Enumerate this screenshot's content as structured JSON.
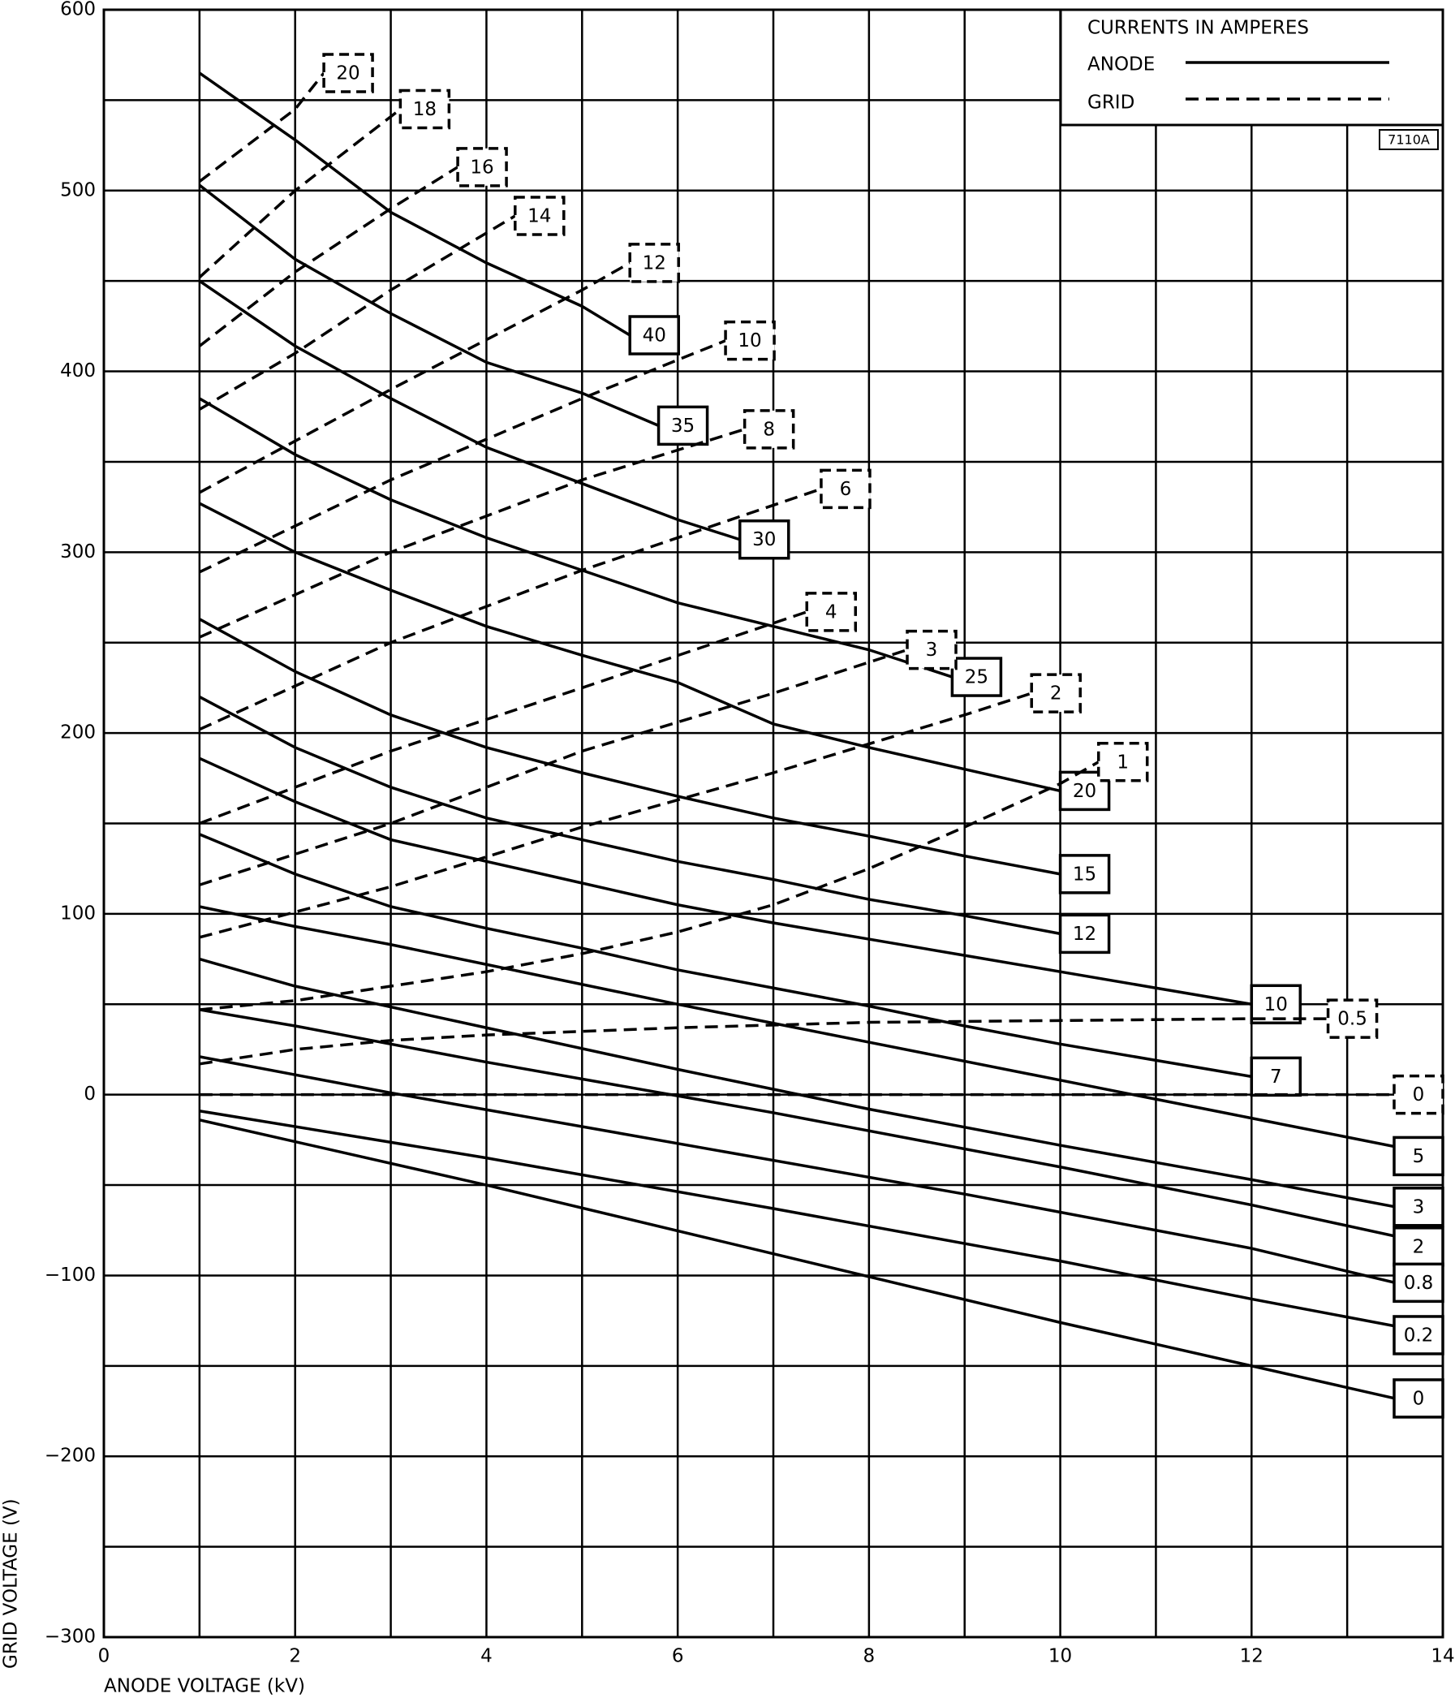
{
  "chart_data": {
    "type": "line",
    "x_label": "ANODE VOLTAGE (kV)",
    "y_label": "GRID VOLTAGE (V)",
    "xlim": [
      0,
      14
    ],
    "ylim": [
      -300,
      600
    ],
    "xticks": [
      0,
      2,
      4,
      6,
      8,
      10,
      12,
      14
    ],
    "yticks": [
      600,
      500,
      400,
      300,
      200,
      100,
      0,
      {
        "value": -100,
        "label": "−100"
      },
      {
        "value": -200,
        "label": "−200"
      },
      {
        "value": -300,
        "label": "−300"
      }
    ],
    "grid": true,
    "minor_grid": true,
    "legend": {
      "title": "CURRENTS IN AMPERES",
      "anode": "ANODE",
      "grid": "GRID"
    },
    "code": "7110A",
    "series": [
      {
        "name": "40",
        "color": "#000000",
        "dash": false,
        "x": [
          1,
          2,
          3,
          4,
          5,
          5.5
        ],
        "values": [
          565,
          528,
          488,
          460,
          436,
          420
        ]
      },
      {
        "name": "35",
        "color": "#000000",
        "dash": false,
        "x": [
          1,
          2,
          3,
          4,
          5,
          5.8
        ],
        "values": [
          503,
          462,
          432,
          405,
          388,
          370
        ]
      },
      {
        "name": "30",
        "color": "#000000",
        "dash": false,
        "x": [
          1,
          2,
          3,
          4,
          5,
          6,
          6.65
        ],
        "values": [
          450,
          414,
          385,
          358,
          338,
          318,
          307
        ]
      },
      {
        "name": "25",
        "color": "#000000",
        "dash": false,
        "x": [
          1,
          2,
          3,
          4,
          5,
          6,
          7,
          8,
          8.87
        ],
        "values": [
          385,
          354,
          329,
          308,
          290,
          272,
          259,
          246,
          231
        ]
      },
      {
        "name": "20",
        "color": "#000000",
        "dash": false,
        "x": [
          1,
          2,
          3,
          4,
          5,
          6,
          7,
          8,
          9,
          10
        ],
        "values": [
          327,
          300,
          279,
          259,
          243,
          228,
          205,
          192,
          180,
          168
        ]
      },
      {
        "name": "15",
        "color": "#000000",
        "dash": false,
        "x": [
          1,
          2,
          3,
          4,
          5,
          6,
          7,
          8,
          9,
          10
        ],
        "values": [
          263,
          234,
          210,
          192,
          178,
          165,
          153,
          143,
          132,
          122
        ]
      },
      {
        "name": "12",
        "color": "#000000",
        "dash": false,
        "x": [
          1,
          2,
          3,
          4,
          5,
          6,
          7,
          8,
          9,
          10
        ],
        "values": [
          220,
          192,
          170,
          153,
          141,
          129,
          119,
          108,
          99,
          89
        ]
      },
      {
        "name": "10",
        "color": "#000000",
        "dash": false,
        "x": [
          1,
          2,
          3,
          4,
          5,
          6,
          7,
          8,
          9,
          10,
          11,
          12
        ],
        "values": [
          186,
          162,
          141,
          129,
          117,
          105,
          95,
          86,
          77,
          68,
          59,
          50
        ]
      },
      {
        "name": "7",
        "color": "#000000",
        "dash": false,
        "x": [
          1,
          2,
          3,
          4,
          5,
          6,
          7,
          8,
          9,
          10,
          11,
          12
        ],
        "values": [
          144,
          122,
          104,
          92,
          81,
          69,
          59,
          49,
          38,
          28,
          19,
          10
        ]
      },
      {
        "name": "5",
        "color": "#000000",
        "dash": false,
        "x": [
          1,
          2,
          3,
          4,
          6,
          8,
          10,
          12,
          14
        ],
        "values": [
          104,
          93,
          83,
          72,
          50,
          29,
          8,
          -13,
          -34
        ]
      },
      {
        "name": "3",
        "color": "#000000",
        "dash": false,
        "x": [
          1,
          2,
          4,
          6,
          8,
          10,
          12,
          13.5
        ],
        "values": [
          75,
          60,
          37,
          14,
          -8,
          -28,
          -47,
          -62
        ]
      },
      {
        "name": "2",
        "color": "#000000",
        "dash": false,
        "x": [
          1,
          2,
          4,
          7,
          10,
          12,
          14
        ],
        "values": [
          47,
          38,
          18,
          -10,
          -40,
          -61,
          -84
        ]
      },
      {
        "name": "0.8",
        "color": "#000000",
        "dash": false,
        "x": [
          1,
          3,
          6,
          9,
          12,
          13.5
        ],
        "values": [
          21,
          1,
          -27,
          -55,
          -85,
          -104
        ]
      },
      {
        "name": "0.2",
        "color": "#000000",
        "dash": false,
        "x": [
          1,
          4,
          7,
          10,
          12,
          14
        ],
        "values": [
          -9,
          -35,
          -63,
          -92,
          -113,
          -133
        ]
      },
      {
        "name": "0",
        "color": "#000000",
        "dash": false,
        "x": [
          1,
          4,
          7,
          10,
          13.5
        ],
        "values": [
          -14,
          -50,
          -88,
          -126,
          -168
        ]
      },
      {
        "name": "20",
        "color": "#000000",
        "dash": true,
        "x": [
          1,
          2,
          2.3
        ],
        "values": [
          505,
          545,
          565
        ]
      },
      {
        "name": "18",
        "color": "#000000",
        "dash": true,
        "x": [
          1,
          2,
          3.1
        ],
        "values": [
          452,
          500,
          545
        ]
      },
      {
        "name": "16",
        "color": "#000000",
        "dash": true,
        "x": [
          1,
          2,
          3,
          3.7
        ],
        "values": [
          414,
          455,
          490,
          513
        ]
      },
      {
        "name": "14",
        "color": "#000000",
        "dash": true,
        "x": [
          1,
          2,
          3,
          4.3
        ],
        "values": [
          379,
          410,
          445,
          486
        ]
      },
      {
        "name": "12",
        "color": "#000000",
        "dash": true,
        "x": [
          1,
          3,
          5,
          5.5
        ],
        "values": [
          333,
          390,
          445,
          460
        ]
      },
      {
        "name": "10",
        "color": "#000000",
        "dash": true,
        "x": [
          1,
          3,
          5,
          6.5
        ],
        "values": [
          289,
          340,
          385,
          417
        ]
      },
      {
        "name": "8",
        "color": "#000000",
        "dash": true,
        "x": [
          1,
          3,
          5,
          6.7
        ],
        "values": [
          253,
          300,
          340,
          368
        ]
      },
      {
        "name": "6",
        "color": "#000000",
        "dash": true,
        "x": [
          1,
          3,
          5,
          7.5
        ],
        "values": [
          202,
          250,
          290,
          335
        ]
      },
      {
        "name": "4",
        "color": "#000000",
        "dash": true,
        "x": [
          1,
          3,
          5,
          7.35
        ],
        "values": [
          150,
          190,
          225,
          267
        ]
      },
      {
        "name": "3",
        "color": "#000000",
        "dash": true,
        "x": [
          1,
          3,
          5,
          7,
          8.4
        ],
        "values": [
          116,
          150,
          190,
          222,
          246
        ]
      },
      {
        "name": "2",
        "color": "#000000",
        "dash": true,
        "x": [
          1,
          3,
          5,
          7,
          9,
          9.7
        ],
        "values": [
          87,
          115,
          148,
          178,
          210,
          222
        ]
      },
      {
        "name": "1",
        "color": "#000000",
        "dash": true,
        "x": [
          1,
          2,
          3,
          4,
          5,
          6,
          7,
          8,
          9,
          10,
          10.4
        ],
        "values": [
          47,
          52,
          60,
          68,
          78,
          90,
          105,
          125,
          148,
          172,
          184
        ]
      },
      {
        "name": "0.5",
        "color": "#000000",
        "dash": true,
        "x": [
          1,
          2,
          3,
          4,
          6,
          8,
          10,
          12,
          12.8
        ],
        "values": [
          17,
          25,
          30,
          33,
          37,
          40,
          41,
          42,
          42
        ]
      },
      {
        "name": "0",
        "color": "#000000",
        "dash": true,
        "x": [
          1,
          13.5
        ],
        "values": [
          0,
          0
        ]
      }
    ]
  }
}
